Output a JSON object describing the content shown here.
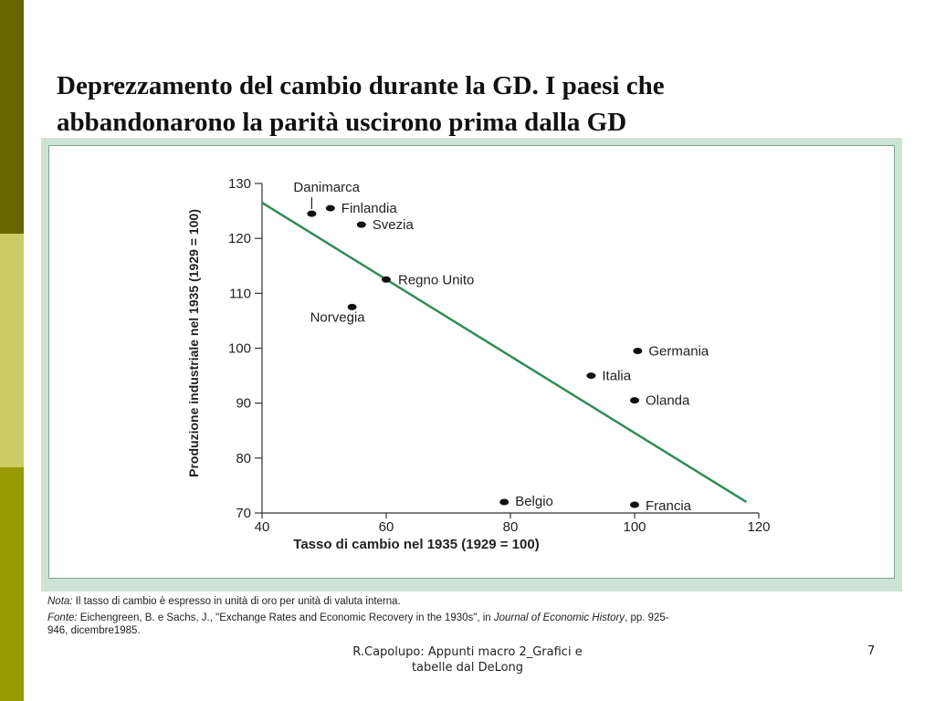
{
  "slide": {
    "title_line1": "Deprezzamento del cambio durante la GD. I paesi che",
    "title_line2": "abbandonarono la parità uscirono prima dalla GD",
    "footer_line1": "R.Capolupo: Appunti macro 2_Grafici e",
    "footer_line2": "tabelle dal DeLong",
    "page_number": "7"
  },
  "colors": {
    "bar_dark": "#666600",
    "bar_light": "#cccc66",
    "bar_mid": "#999900",
    "chart_bg": "#cde3d5",
    "trend_line": "#2e8b57"
  },
  "notes": {
    "nota_label": "Nota:",
    "nota_text": " Il tasso di cambio è espresso in unità di oro per unità di valuta interna.",
    "fonte_label": "Fonte:",
    "fonte_text1": " Eichengreen, B. e Sachs, J., \"Exchange Rates and Economic Recovery in the 1930s\", in ",
    "fonte_journal": "Journal of Economic History",
    "fonte_text2": ", pp. 925-",
    "fonte_line2": "946, dicembre1985."
  },
  "chart_data": {
    "type": "scatter",
    "xlabel": "Tasso di cambio nel 1935 (1929 = 100)",
    "ylabel": "Produzione industriale nel 1935 (1929 = 100)",
    "xlim": [
      40,
      120
    ],
    "ylim": [
      70,
      130
    ],
    "xticks": [
      40,
      60,
      80,
      100,
      120
    ],
    "yticks": [
      70,
      80,
      90,
      100,
      110,
      120,
      130
    ],
    "points": [
      {
        "label": "Danimarca",
        "x": 48,
        "y": 124.5
      },
      {
        "label": "Finlandia",
        "x": 51,
        "y": 125.5
      },
      {
        "label": "Svezia",
        "x": 56,
        "y": 122.5
      },
      {
        "label": "Regno Unito",
        "x": 60,
        "y": 112.5
      },
      {
        "label": "Norvegia",
        "x": 54.5,
        "y": 107.5
      },
      {
        "label": "Germania",
        "x": 100.5,
        "y": 99.5
      },
      {
        "label": "Italia",
        "x": 93,
        "y": 95
      },
      {
        "label": "Olanda",
        "x": 100,
        "y": 90.5
      },
      {
        "label": "Belgio",
        "x": 79,
        "y": 72
      },
      {
        "label": "Francia",
        "x": 100,
        "y": 71.5
      }
    ],
    "trend_line": {
      "x": [
        40,
        118
      ],
      "y": [
        126.5,
        72
      ]
    },
    "grid": false
  }
}
